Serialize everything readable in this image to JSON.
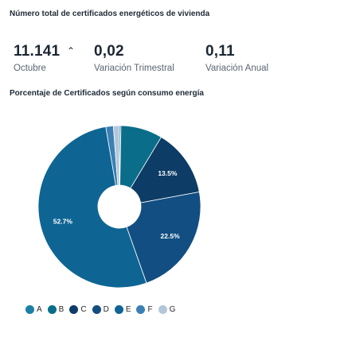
{
  "kpi": {
    "title": "Número total de certificados energéticos de vivienda",
    "total": {
      "value": "11.141",
      "label": "Octubre",
      "trend_symbol": "⌃"
    },
    "quarterly": {
      "value": "0,02",
      "label": "Variación Trimestral"
    },
    "annual": {
      "value": "0,11",
      "label": "Variación Anual"
    }
  },
  "chart_title": "Porcentaje de Certificados según consumo energía",
  "chart_data": {
    "type": "pie",
    "title": "Porcentaje de Certificados según consumo energía",
    "donut": true,
    "categories": [
      "A",
      "B",
      "C",
      "D",
      "E",
      "F",
      "G"
    ],
    "values": [
      0.3,
      8.3,
      13.5,
      22.5,
      52.7,
      1.5,
      1.2
    ],
    "data_labels": [
      "",
      "",
      "13.5%",
      "22.5%",
      "52.7%",
      "",
      ""
    ],
    "colors": [
      "#1c7fa6",
      "#0a6e8a",
      "#0d3c66",
      "#124e82",
      "#0e6594",
      "#3b7fb5",
      "#b4c7d9"
    ],
    "legend_position": "bottom-left"
  }
}
